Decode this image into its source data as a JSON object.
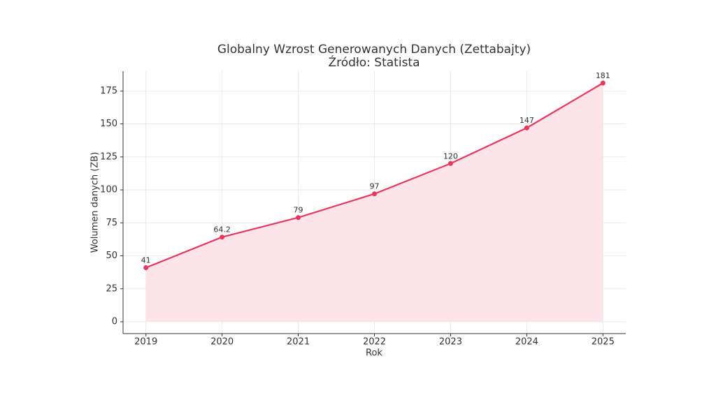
{
  "chart_data": {
    "type": "line",
    "title": "Globalny Wzrost Generowanych Danych (Zettabajty)",
    "subtitle": "Źródło: Statista",
    "x_label": "Rok",
    "y_label": "Wolumen danych (ZB)",
    "x": [
      2019,
      2020,
      2021,
      2022,
      2023,
      2024,
      2025
    ],
    "values": [
      41,
      64.2,
      79,
      97,
      120,
      147,
      181
    ],
    "color": "#e8375e",
    "area_color": "#fde4ea",
    "xlim": [
      2018.7,
      2025.3
    ],
    "xticks": [
      2019,
      2020,
      2021,
      2022,
      2023,
      2024,
      2025
    ],
    "ylim": [
      -9,
      190
    ],
    "yticks": [
      0,
      25,
      50,
      75,
      100,
      125,
      150,
      175
    ],
    "grid": true,
    "area": true,
    "data_labels": true
  }
}
